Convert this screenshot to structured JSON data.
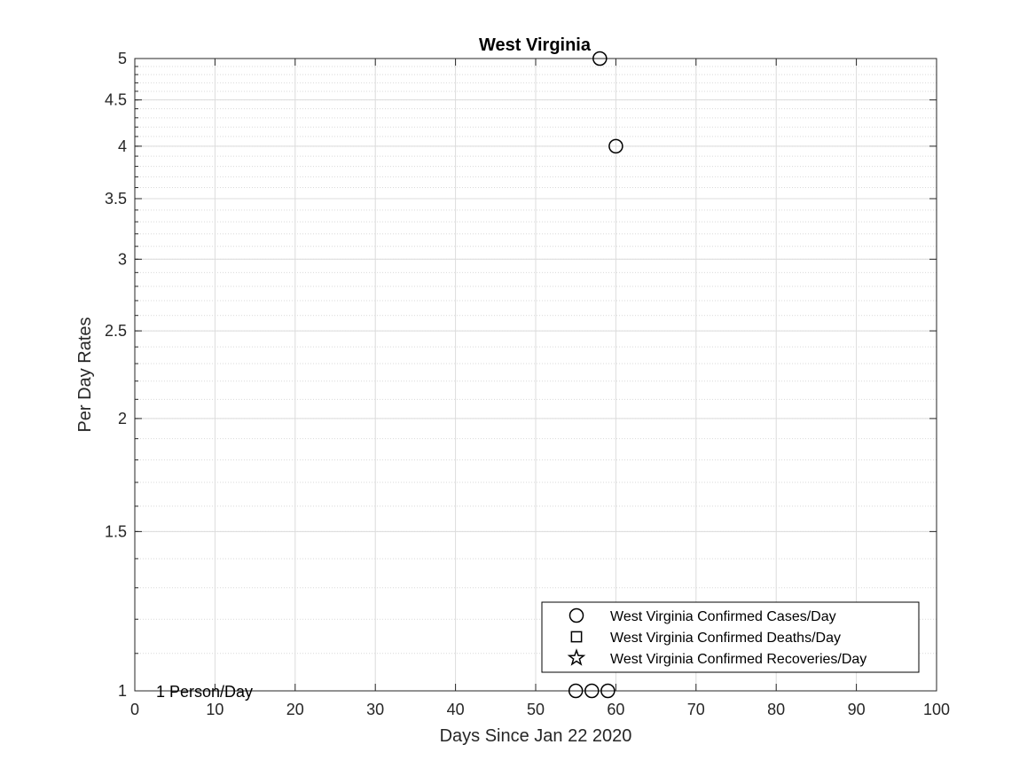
{
  "chart_data": {
    "type": "scatter",
    "title": "West Virginia",
    "xlabel": "Days Since Jan 22 2020",
    "ylabel": "Per Day Rates",
    "xlim": [
      0,
      100
    ],
    "ylim": [
      1,
      5
    ],
    "yscale": "log",
    "grid": true,
    "minor_grid": true,
    "x_ticks": [
      "0",
      "10",
      "20",
      "30",
      "40",
      "50",
      "60",
      "70",
      "80",
      "90",
      "100"
    ],
    "y_ticks": [
      "1",
      "1.5",
      "2",
      "2.5",
      "3",
      "3.5",
      "4",
      "4.5",
      "5"
    ],
    "legend_position": "bottom-right",
    "series": [
      {
        "name": "West Virginia Confirmed Cases/Day",
        "marker": "circle",
        "color": "#000000",
        "points": [
          {
            "x": 55,
            "y": 1
          },
          {
            "x": 57,
            "y": 1
          },
          {
            "x": 58,
            "y": 5
          },
          {
            "x": 59,
            "y": 1
          },
          {
            "x": 60,
            "y": 4
          }
        ]
      },
      {
        "name": "West Virginia Confirmed Deaths/Day",
        "marker": "square",
        "color": "#000000",
        "points": []
      },
      {
        "name": "West Virginia Confirmed Recoveries/Day",
        "marker": "star",
        "color": "#000000",
        "points": []
      }
    ],
    "annotations": [
      {
        "text": "1 Person/Day",
        "x": 3,
        "y": 1
      }
    ]
  }
}
